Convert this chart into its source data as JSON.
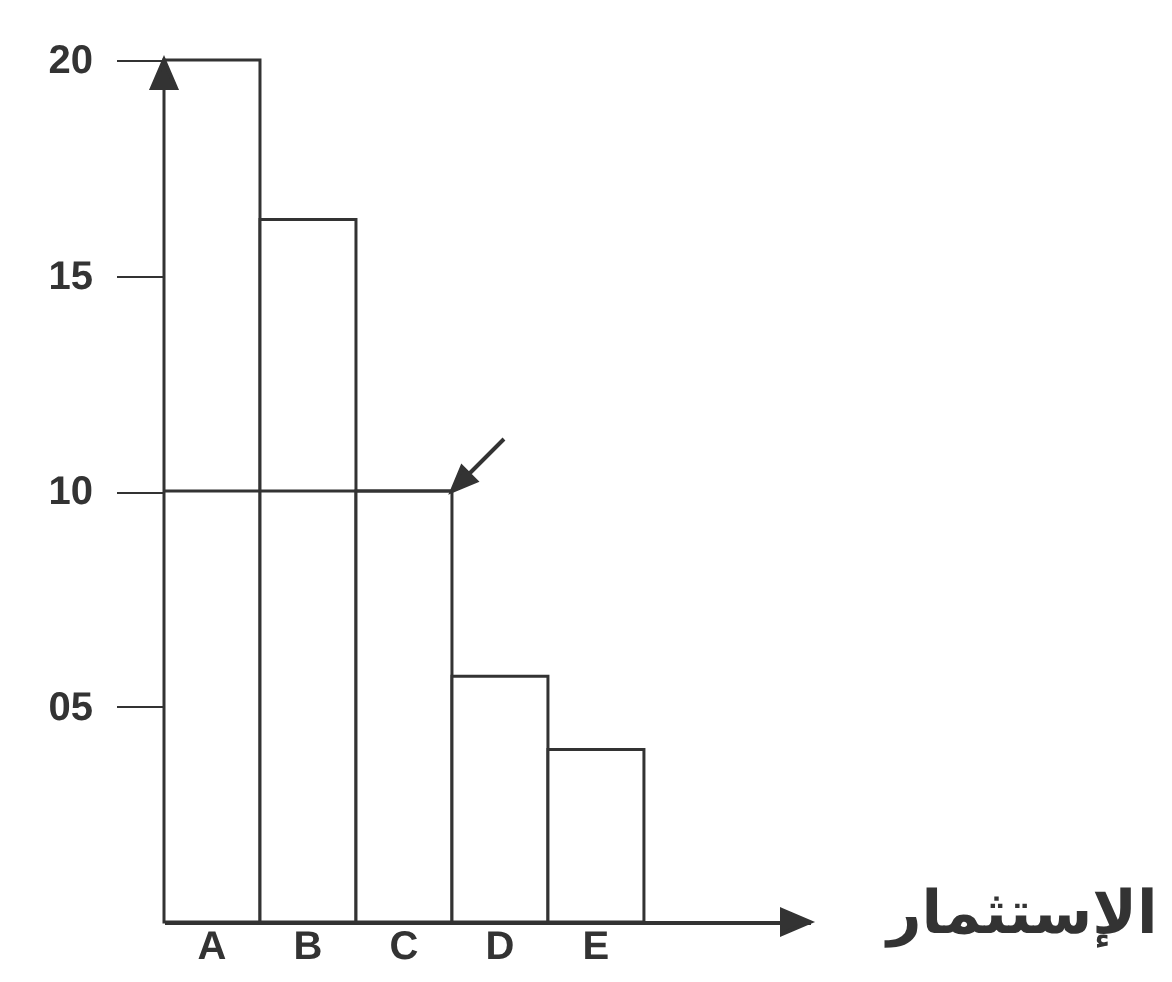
{
  "chart_data": {
    "type": "bar",
    "xlabel": "الإستثمار",
    "categories": [
      "A",
      "B",
      "C",
      "D",
      "E"
    ],
    "series": [
      {
        "color": "#ffffff",
        "values": [
          20,
          16.3,
          10,
          5.7,
          4
        ]
      }
    ],
    "ylim": [
      0,
      20
    ],
    "yticks": [
      {
        "value": 5,
        "label": "05"
      },
      10,
      15,
      20
    ],
    "ref_lines": [
      {
        "axis": "y",
        "value": 10
      }
    ],
    "grid": false
  }
}
